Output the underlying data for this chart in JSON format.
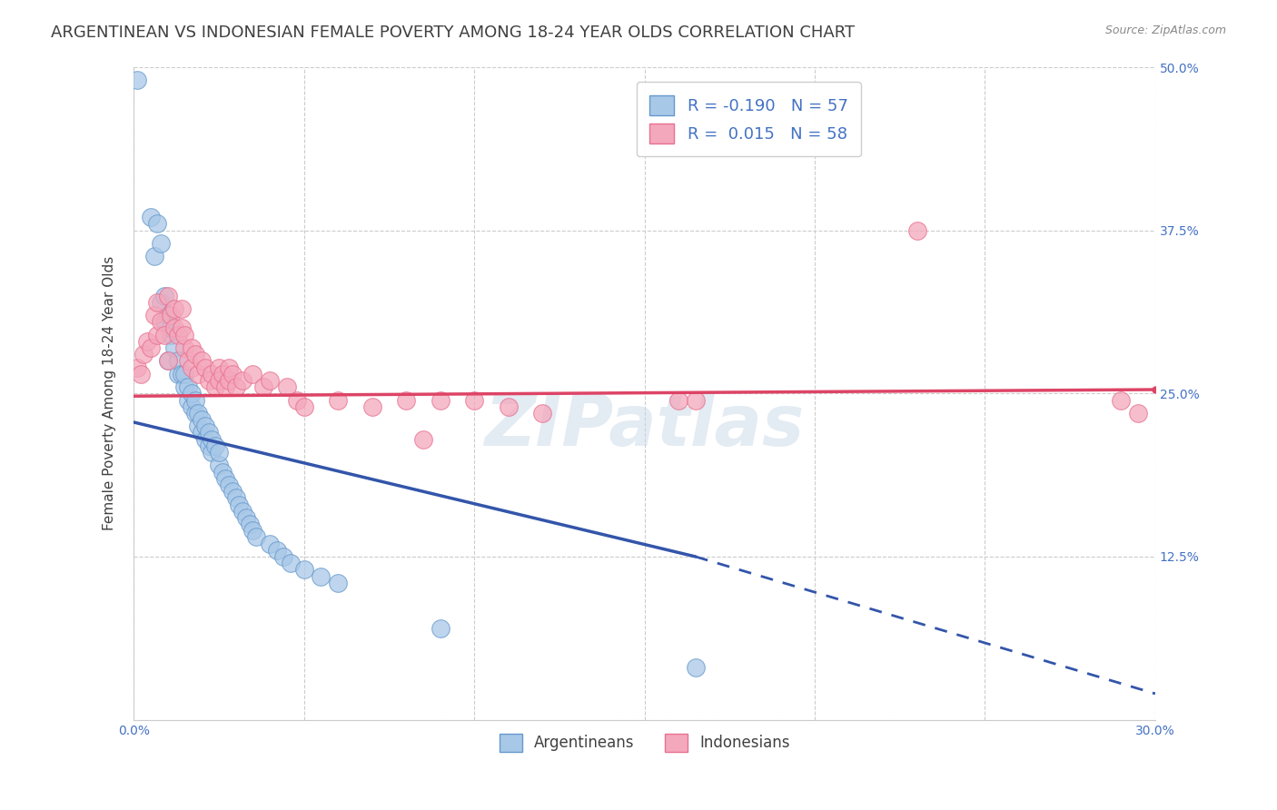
{
  "title": "ARGENTINEAN VS INDONESIAN FEMALE POVERTY AMONG 18-24 YEAR OLDS CORRELATION CHART",
  "source": "Source: ZipAtlas.com",
  "ylabel": "Female Poverty Among 18-24 Year Olds",
  "xlim": [
    0.0,
    0.3
  ],
  "ylim": [
    0.0,
    0.5
  ],
  "xticks": [
    0.0,
    0.05,
    0.1,
    0.15,
    0.2,
    0.25,
    0.3
  ],
  "xticklabels": [
    "0.0%",
    "",
    "",
    "",
    "",
    "",
    "30.0%"
  ],
  "yticks": [
    0.0,
    0.125,
    0.25,
    0.375,
    0.5
  ],
  "yticklabels": [
    "",
    "12.5%",
    "25.0%",
    "37.5%",
    "50.0%"
  ],
  "blue_R": -0.19,
  "pink_R": 0.015,
  "blue_N": 57,
  "pink_N": 58,
  "blue_color": "#a8c8e8",
  "pink_color": "#f4a8bc",
  "blue_edge_color": "#6699cc",
  "pink_edge_color": "#e87090",
  "blue_line_color": "#3355aa",
  "pink_line_color": "#dd4466",
  "blue_scatter": [
    [
      0.001,
      0.49
    ],
    [
      0.005,
      0.385
    ],
    [
      0.006,
      0.355
    ],
    [
      0.007,
      0.38
    ],
    [
      0.008,
      0.32
    ],
    [
      0.008,
      0.365
    ],
    [
      0.009,
      0.305
    ],
    [
      0.009,
      0.325
    ],
    [
      0.01,
      0.275
    ],
    [
      0.01,
      0.31
    ],
    [
      0.011,
      0.295
    ],
    [
      0.011,
      0.3
    ],
    [
      0.012,
      0.285
    ],
    [
      0.013,
      0.265
    ],
    [
      0.013,
      0.275
    ],
    [
      0.014,
      0.265
    ],
    [
      0.015,
      0.255
    ],
    [
      0.015,
      0.265
    ],
    [
      0.016,
      0.245
    ],
    [
      0.016,
      0.255
    ],
    [
      0.017,
      0.24
    ],
    [
      0.017,
      0.25
    ],
    [
      0.018,
      0.235
    ],
    [
      0.018,
      0.245
    ],
    [
      0.019,
      0.225
    ],
    [
      0.019,
      0.235
    ],
    [
      0.02,
      0.22
    ],
    [
      0.02,
      0.23
    ],
    [
      0.021,
      0.215
    ],
    [
      0.021,
      0.225
    ],
    [
      0.022,
      0.21
    ],
    [
      0.022,
      0.22
    ],
    [
      0.023,
      0.205
    ],
    [
      0.023,
      0.215
    ],
    [
      0.024,
      0.21
    ],
    [
      0.025,
      0.195
    ],
    [
      0.025,
      0.205
    ],
    [
      0.026,
      0.19
    ],
    [
      0.027,
      0.185
    ],
    [
      0.028,
      0.18
    ],
    [
      0.029,
      0.175
    ],
    [
      0.03,
      0.17
    ],
    [
      0.031,
      0.165
    ],
    [
      0.032,
      0.16
    ],
    [
      0.033,
      0.155
    ],
    [
      0.034,
      0.15
    ],
    [
      0.035,
      0.145
    ],
    [
      0.036,
      0.14
    ],
    [
      0.04,
      0.135
    ],
    [
      0.042,
      0.13
    ],
    [
      0.044,
      0.125
    ],
    [
      0.046,
      0.12
    ],
    [
      0.05,
      0.115
    ],
    [
      0.055,
      0.11
    ],
    [
      0.06,
      0.105
    ],
    [
      0.09,
      0.07
    ],
    [
      0.165,
      0.04
    ]
  ],
  "pink_scatter": [
    [
      0.001,
      0.27
    ],
    [
      0.002,
      0.265
    ],
    [
      0.003,
      0.28
    ],
    [
      0.004,
      0.29
    ],
    [
      0.005,
      0.285
    ],
    [
      0.006,
      0.31
    ],
    [
      0.007,
      0.32
    ],
    [
      0.007,
      0.295
    ],
    [
      0.008,
      0.305
    ],
    [
      0.009,
      0.295
    ],
    [
      0.01,
      0.275
    ],
    [
      0.01,
      0.325
    ],
    [
      0.011,
      0.31
    ],
    [
      0.012,
      0.3
    ],
    [
      0.012,
      0.315
    ],
    [
      0.013,
      0.295
    ],
    [
      0.014,
      0.3
    ],
    [
      0.014,
      0.315
    ],
    [
      0.015,
      0.285
    ],
    [
      0.015,
      0.295
    ],
    [
      0.016,
      0.275
    ],
    [
      0.017,
      0.285
    ],
    [
      0.017,
      0.27
    ],
    [
      0.018,
      0.28
    ],
    [
      0.019,
      0.265
    ],
    [
      0.02,
      0.275
    ],
    [
      0.021,
      0.27
    ],
    [
      0.022,
      0.26
    ],
    [
      0.023,
      0.265
    ],
    [
      0.024,
      0.255
    ],
    [
      0.025,
      0.27
    ],
    [
      0.025,
      0.26
    ],
    [
      0.026,
      0.265
    ],
    [
      0.027,
      0.255
    ],
    [
      0.028,
      0.26
    ],
    [
      0.028,
      0.27
    ],
    [
      0.029,
      0.265
    ],
    [
      0.03,
      0.255
    ],
    [
      0.032,
      0.26
    ],
    [
      0.035,
      0.265
    ],
    [
      0.038,
      0.255
    ],
    [
      0.04,
      0.26
    ],
    [
      0.045,
      0.255
    ],
    [
      0.048,
      0.245
    ],
    [
      0.05,
      0.24
    ],
    [
      0.06,
      0.245
    ],
    [
      0.07,
      0.24
    ],
    [
      0.08,
      0.245
    ],
    [
      0.085,
      0.215
    ],
    [
      0.09,
      0.245
    ],
    [
      0.1,
      0.245
    ],
    [
      0.11,
      0.24
    ],
    [
      0.12,
      0.235
    ],
    [
      0.16,
      0.245
    ],
    [
      0.165,
      0.245
    ],
    [
      0.23,
      0.375
    ],
    [
      0.29,
      0.245
    ],
    [
      0.295,
      0.235
    ]
  ],
  "watermark": "ZIPatlas",
  "background_color": "#ffffff",
  "grid_color": "#cccccc",
  "axis_color": "#4472c4",
  "title_color": "#404040",
  "title_fontsize": 13,
  "label_fontsize": 11,
  "tick_fontsize": 10,
  "blue_line_start_x": 0.0,
  "blue_line_end_solid_x": 0.165,
  "blue_line_start_y": 0.228,
  "blue_line_end_solid_y": 0.125,
  "blue_line_end_dashed_x": 0.3,
  "blue_line_end_dashed_y": 0.02,
  "pink_line_start_x": 0.0,
  "pink_line_start_y": 0.248,
  "pink_line_end_x": 0.3,
  "pink_line_end_y": 0.253
}
